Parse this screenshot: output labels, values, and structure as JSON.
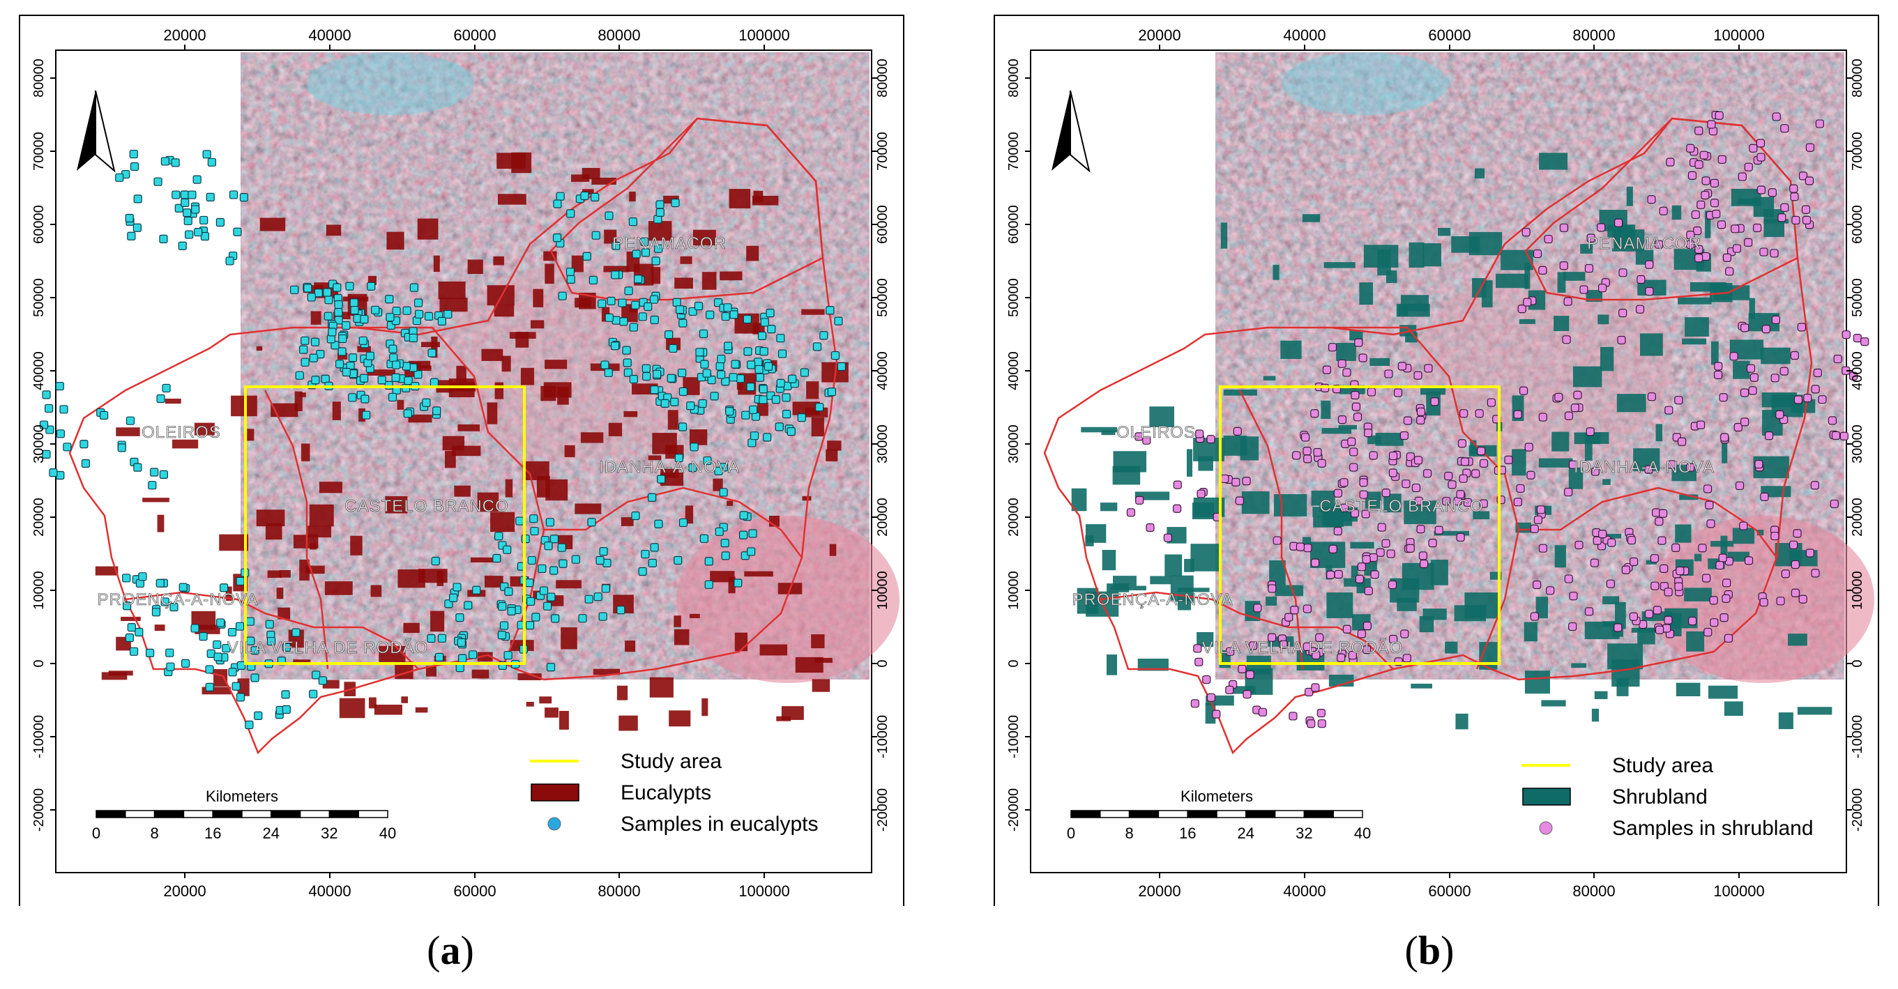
{
  "panels": [
    {
      "caption_open": "(",
      "caption_letter": "a",
      "caption_close": ")",
      "layer_color": "#8b0a0a",
      "sample_color": "#2fd7e0",
      "sample_stroke": "#0b3b4a",
      "legend": [
        {
          "label": "Study area",
          "symbol": "line",
          "color": "#ffff00"
        },
        {
          "label": "Eucalypts",
          "symbol": "box",
          "color": "#8b0a0a"
        },
        {
          "label": "Samples in eucalypts",
          "symbol": "dot",
          "color": "#29a8e0"
        }
      ]
    },
    {
      "caption_open": "(",
      "caption_letter": "b",
      "caption_close": ")",
      "layer_color": "#0f6b66",
      "sample_color": "#e58ae0",
      "sample_stroke": "#3a1a3a",
      "legend": [
        {
          "label": "Study area",
          "symbol": "line",
          "color": "#ffff00"
        },
        {
          "label": "Shrubland",
          "symbol": "box",
          "color": "#0f6b66"
        },
        {
          "label": "Samples in shrubland",
          "symbol": "dot",
          "color": "#e58ae0"
        }
      ]
    }
  ],
  "x_ticks": [
    "20000",
    "40000",
    "60000",
    "80000",
    "100000"
  ],
  "y_ticks": [
    "80000",
    "70000",
    "60000",
    "50000",
    "40000",
    "30000",
    "20000",
    "10000",
    "0",
    "-10000",
    "-20000"
  ],
  "places": [
    "PENAMACOR",
    "OLEIROS",
    "IDANHA-A-NOVA",
    "CASTELO BRANCO",
    "PROENÇA-A-NOVA",
    "VILA VELHA DE RODÃO"
  ],
  "scalebar": {
    "title": "Kilometers",
    "ticks": [
      "0",
      "8",
      "16",
      "24",
      "32",
      "40"
    ]
  },
  "colors": {
    "study_area": "#ffff00",
    "boundary": "#e03030",
    "north_arrow": "#000000"
  }
}
